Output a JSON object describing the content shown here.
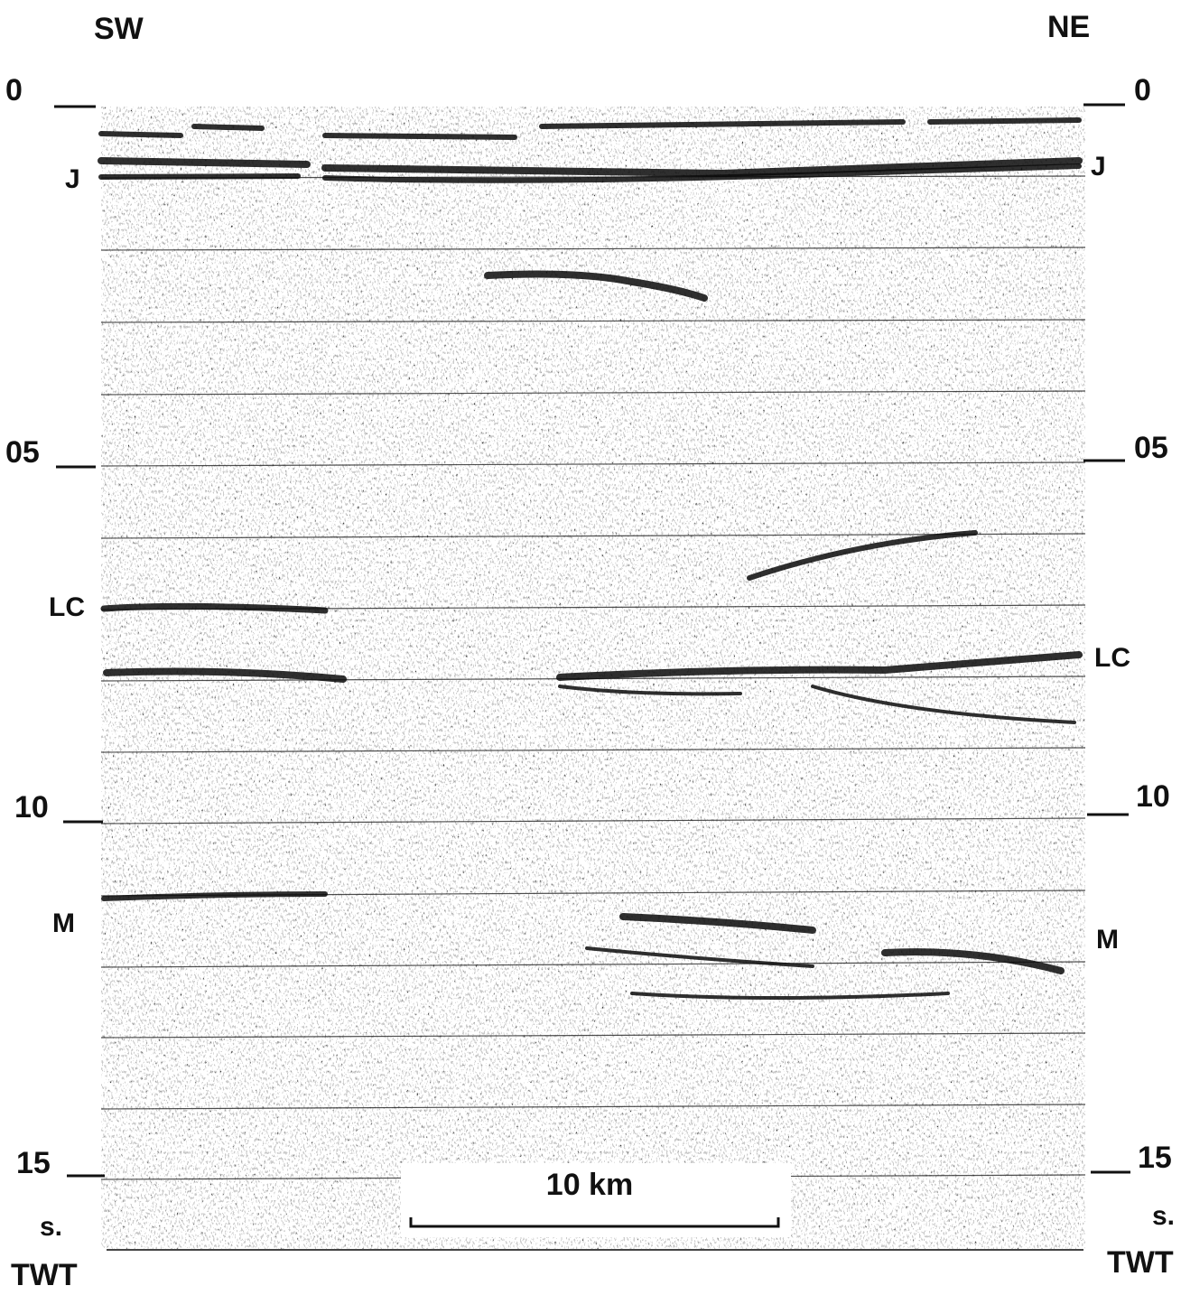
{
  "header": {
    "left": "SW",
    "right": "NE"
  },
  "left_axis": {
    "ticks": [
      "0",
      "05",
      "10",
      "15"
    ],
    "unit": "s.",
    "label": "TWT"
  },
  "right_axis": {
    "ticks": [
      "0",
      "05",
      "10",
      "15"
    ],
    "unit": "s.",
    "label": "TWT"
  },
  "left_horizons": [
    "J",
    "LC",
    "M"
  ],
  "right_horizons": [
    "J",
    "LC",
    "M"
  ],
  "scale_bar": {
    "label": "10 km"
  }
}
